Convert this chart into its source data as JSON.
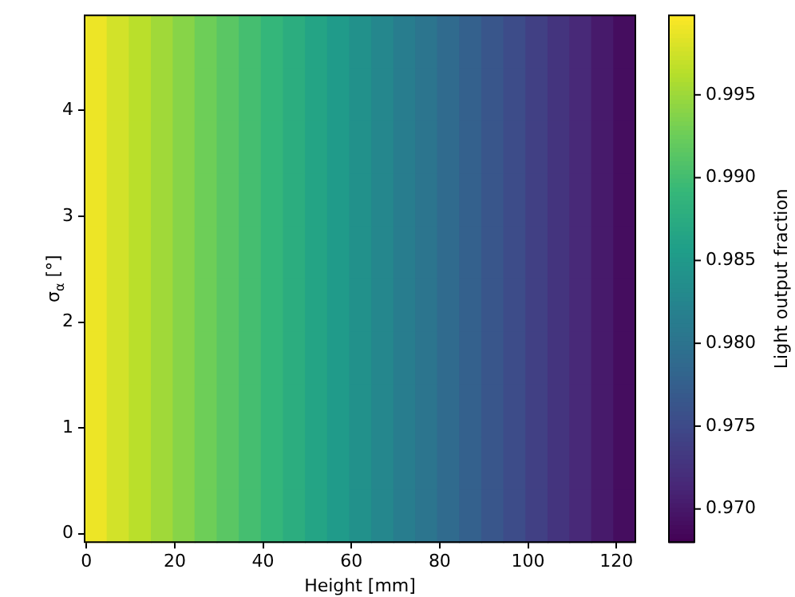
{
  "chart_data": {
    "type": "heatmap",
    "xlabel": "Height [mm]",
    "ylabel": "σ$_{α}$ [°]",
    "clabel": "Light output fraction",
    "x": [
      2.1,
      7.1,
      12.1,
      17.1,
      22.0,
      27.0,
      32.0,
      37.0,
      42.0,
      47.0,
      52.0,
      57.0,
      62.0,
      67.0,
      72.0,
      76.9,
      81.9,
      86.9,
      91.9,
      96.9,
      101.9,
      106.9,
      111.8,
      116.8,
      121.8
    ],
    "cells": [
      [
        0.999,
        0.9977,
        0.9965,
        0.9952,
        0.994,
        0.9927,
        0.9915,
        0.9902,
        0.989,
        0.9878,
        0.9865,
        0.9853,
        0.984,
        0.9828,
        0.9815,
        0.9803,
        0.979,
        0.9778,
        0.9765,
        0.9753,
        0.974,
        0.9728,
        0.9716,
        0.9703,
        0.9691
      ],
      [
        0.999,
        0.9977,
        0.9965,
        0.9952,
        0.994,
        0.9927,
        0.9915,
        0.9902,
        0.989,
        0.9878,
        0.9865,
        0.9853,
        0.984,
        0.9828,
        0.9815,
        0.9803,
        0.979,
        0.9778,
        0.9765,
        0.9753,
        0.974,
        0.9728,
        0.9716,
        0.9703,
        0.9691
      ],
      [
        0.999,
        0.9977,
        0.9965,
        0.9952,
        0.994,
        0.9927,
        0.9915,
        0.9902,
        0.989,
        0.9878,
        0.9865,
        0.9853,
        0.984,
        0.9828,
        0.9815,
        0.9803,
        0.979,
        0.9778,
        0.9765,
        0.9753,
        0.974,
        0.9728,
        0.9716,
        0.9703,
        0.9691
      ],
      [
        0.999,
        0.9977,
        0.9965,
        0.9952,
        0.994,
        0.9927,
        0.9915,
        0.9902,
        0.989,
        0.9878,
        0.9865,
        0.9853,
        0.984,
        0.9828,
        0.9815,
        0.9803,
        0.979,
        0.9778,
        0.9765,
        0.9753,
        0.974,
        0.9728,
        0.9716,
        0.9703,
        0.9691
      ],
      [
        0.999,
        0.9977,
        0.9965,
        0.9952,
        0.994,
        0.9927,
        0.9915,
        0.9902,
        0.989,
        0.9878,
        0.9865,
        0.9853,
        0.984,
        0.9828,
        0.9815,
        0.9803,
        0.979,
        0.9778,
        0.9765,
        0.9753,
        0.974,
        0.9728,
        0.9716,
        0.9703,
        0.9691
      ],
      [
        0.999,
        0.9977,
        0.9965,
        0.9952,
        0.994,
        0.9927,
        0.9915,
        0.9902,
        0.989,
        0.9878,
        0.9865,
        0.9853,
        0.984,
        0.9828,
        0.9815,
        0.9803,
        0.979,
        0.9778,
        0.9765,
        0.9753,
        0.974,
        0.9728,
        0.9716,
        0.9703,
        0.9691
      ],
      [
        0.999,
        0.9977,
        0.9965,
        0.9952,
        0.994,
        0.9927,
        0.9915,
        0.9902,
        0.989,
        0.9878,
        0.9865,
        0.9853,
        0.984,
        0.9828,
        0.9815,
        0.9803,
        0.979,
        0.9778,
        0.9765,
        0.9753,
        0.974,
        0.9728,
        0.9716,
        0.9703,
        0.9691
      ],
      [
        0.999,
        0.9977,
        0.9965,
        0.9952,
        0.994,
        0.9927,
        0.9915,
        0.9902,
        0.989,
        0.9878,
        0.9865,
        0.9853,
        0.984,
        0.9828,
        0.9815,
        0.9803,
        0.979,
        0.9778,
        0.9765,
        0.9753,
        0.974,
        0.9728,
        0.9716,
        0.9703,
        0.9691
      ],
      [
        0.999,
        0.9977,
        0.9965,
        0.9952,
        0.994,
        0.9927,
        0.9915,
        0.9902,
        0.989,
        0.9878,
        0.9865,
        0.9853,
        0.984,
        0.9828,
        0.9815,
        0.9803,
        0.979,
        0.9778,
        0.9765,
        0.9753,
        0.974,
        0.9728,
        0.9716,
        0.9703,
        0.9691
      ],
      [
        0.999,
        0.9977,
        0.9965,
        0.9952,
        0.994,
        0.9927,
        0.9915,
        0.9902,
        0.989,
        0.9878,
        0.9865,
        0.9853,
        0.984,
        0.9828,
        0.9815,
        0.9803,
        0.979,
        0.9778,
        0.9765,
        0.9753,
        0.974,
        0.9728,
        0.9716,
        0.9703,
        0.9691
      ]
    ],
    "xlim": [
      -0.4,
      124.3
    ],
    "xticks": [
      0,
      20,
      40,
      60,
      80,
      100,
      120
    ],
    "ylim": [
      -0.08,
      4.9
    ],
    "yticks": [
      0,
      1,
      2,
      3,
      4
    ],
    "clim": [
      0.968,
      0.9998
    ],
    "cticks": [
      {
        "value": 0.97,
        "label": "0.970"
      },
      0.975,
      {
        "value": 0.98,
        "label": "0.980"
      },
      0.985,
      {
        "value": 0.99,
        "label": "0.990"
      },
      0.995
    ]
  }
}
